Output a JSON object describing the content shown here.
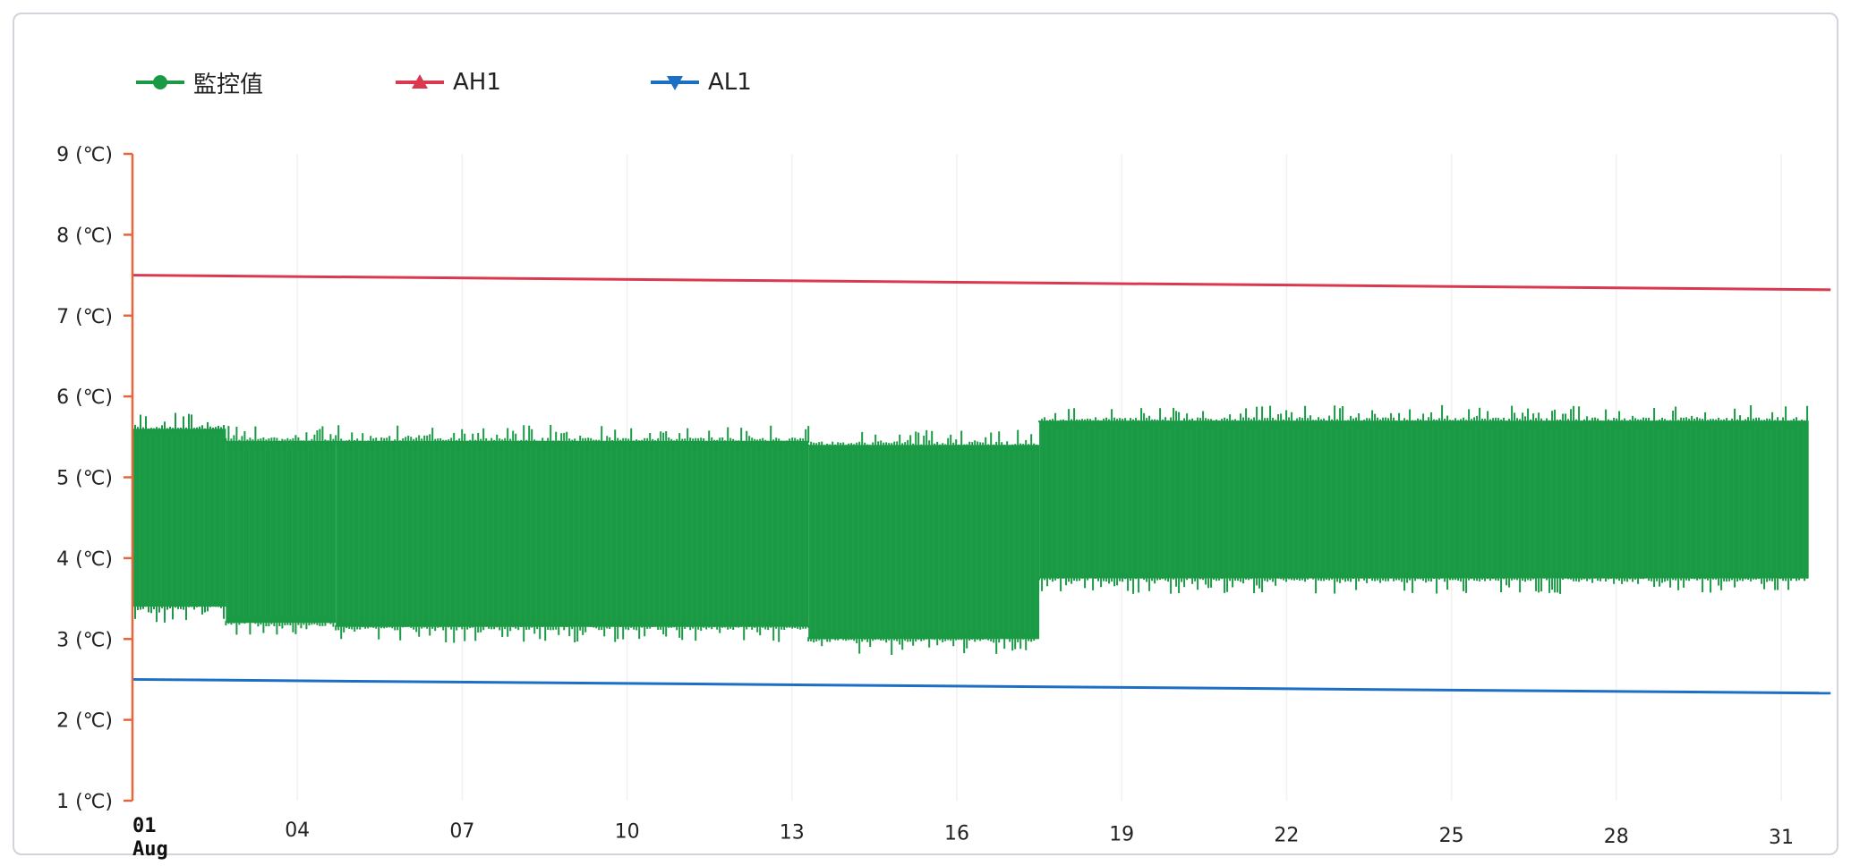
{
  "chart_data": {
    "type": "line",
    "title": "",
    "xlabel": "",
    "ylabel": "",
    "x_axis": {
      "type": "date",
      "range": [
        "2024-08-01",
        "2024-08-31"
      ],
      "tick_days": [
        1,
        4,
        7,
        10,
        13,
        16,
        19,
        22,
        25,
        28,
        31
      ],
      "tick_labels": [
        "01",
        "04",
        "07",
        "10",
        "13",
        "16",
        "19",
        "22",
        "25",
        "28",
        "31"
      ],
      "month_label": "Aug"
    },
    "y_axis": {
      "ylim": [
        1,
        9
      ],
      "ticks": [
        1,
        2,
        3,
        4,
        5,
        6,
        7,
        8,
        9
      ],
      "tick_labels": [
        "1 (℃)",
        "2 (℃)",
        "3 (℃)",
        "4 (℃)",
        "5 (℃)",
        "6 (℃)",
        "7 (℃)",
        "8 (℃)",
        "9 (℃)"
      ]
    },
    "grid": "vertical",
    "legend_position": "top-left",
    "series": [
      {
        "name": "監控值",
        "color": "#1a9a44",
        "marker": "circle",
        "kind": "oscillating band",
        "segments": [
          {
            "from_day": 1.0,
            "to_day": 2.7,
            "high": 5.6,
            "low": 3.4
          },
          {
            "from_day": 2.7,
            "to_day": 4.7,
            "high": 5.45,
            "low": 3.2
          },
          {
            "from_day": 4.7,
            "to_day": 13.3,
            "high": 5.45,
            "low": 3.15
          },
          {
            "from_day": 13.3,
            "to_day": 17.5,
            "high": 5.4,
            "low": 3.0
          },
          {
            "from_day": 17.5,
            "to_day": 31.5,
            "high": 5.7,
            "low": 3.75
          }
        ]
      },
      {
        "name": "AH1",
        "color": "#d9384e",
        "marker": "triangle-up",
        "start": 7.5,
        "end": 7.32,
        "x_end_day": 31.9
      },
      {
        "name": "AL1",
        "color": "#1c6fc4",
        "marker": "triangle-down",
        "start": 2.5,
        "end": 2.33,
        "x_end_day": 31.9
      }
    ],
    "axis_color": "#e8643a"
  }
}
